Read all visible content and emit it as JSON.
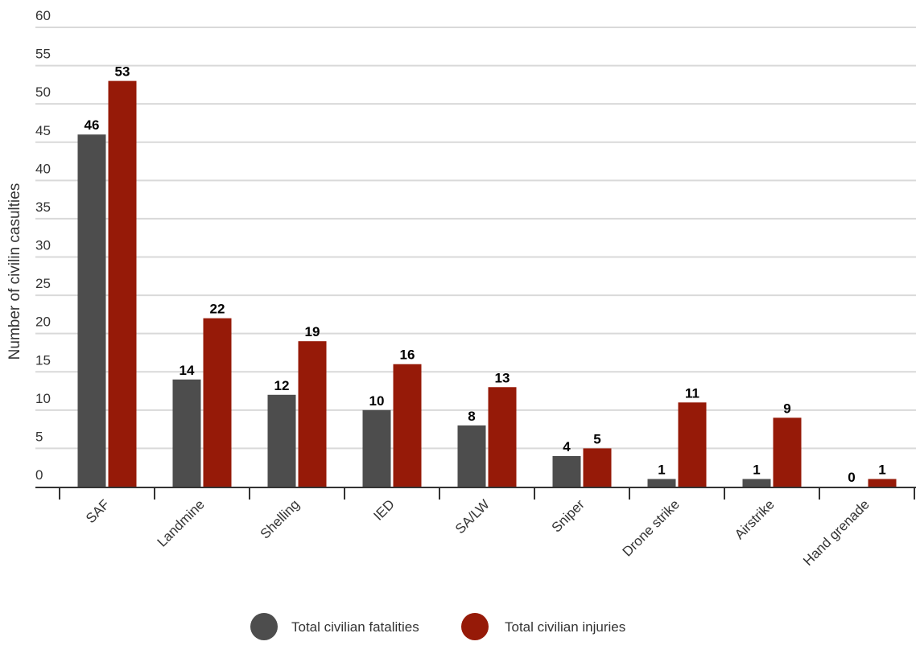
{
  "chart_data": {
    "type": "bar",
    "title": "",
    "xlabel": "",
    "ylabel": "Number of civilin casulties",
    "ylim": [
      0,
      60
    ],
    "yticks": [
      0,
      5,
      10,
      15,
      20,
      25,
      30,
      35,
      40,
      45,
      50,
      55,
      60
    ],
    "grid": true,
    "legend_position": "bottom-center",
    "categories": [
      "SAF",
      "Landmine",
      "Shelling",
      "IED",
      "SA/LW",
      "Sniper",
      "Drone strike",
      "Airstrike",
      "Hand grenade"
    ],
    "series": [
      {
        "name": "Total civilian fatalities",
        "color": "#4d4d4d",
        "values": [
          46,
          14,
          12,
          10,
          8,
          4,
          1,
          1,
          0
        ]
      },
      {
        "name": "Total civilian injuries",
        "color": "#961a08",
        "values": [
          53,
          22,
          19,
          16,
          13,
          5,
          11,
          9,
          1
        ]
      }
    ]
  }
}
